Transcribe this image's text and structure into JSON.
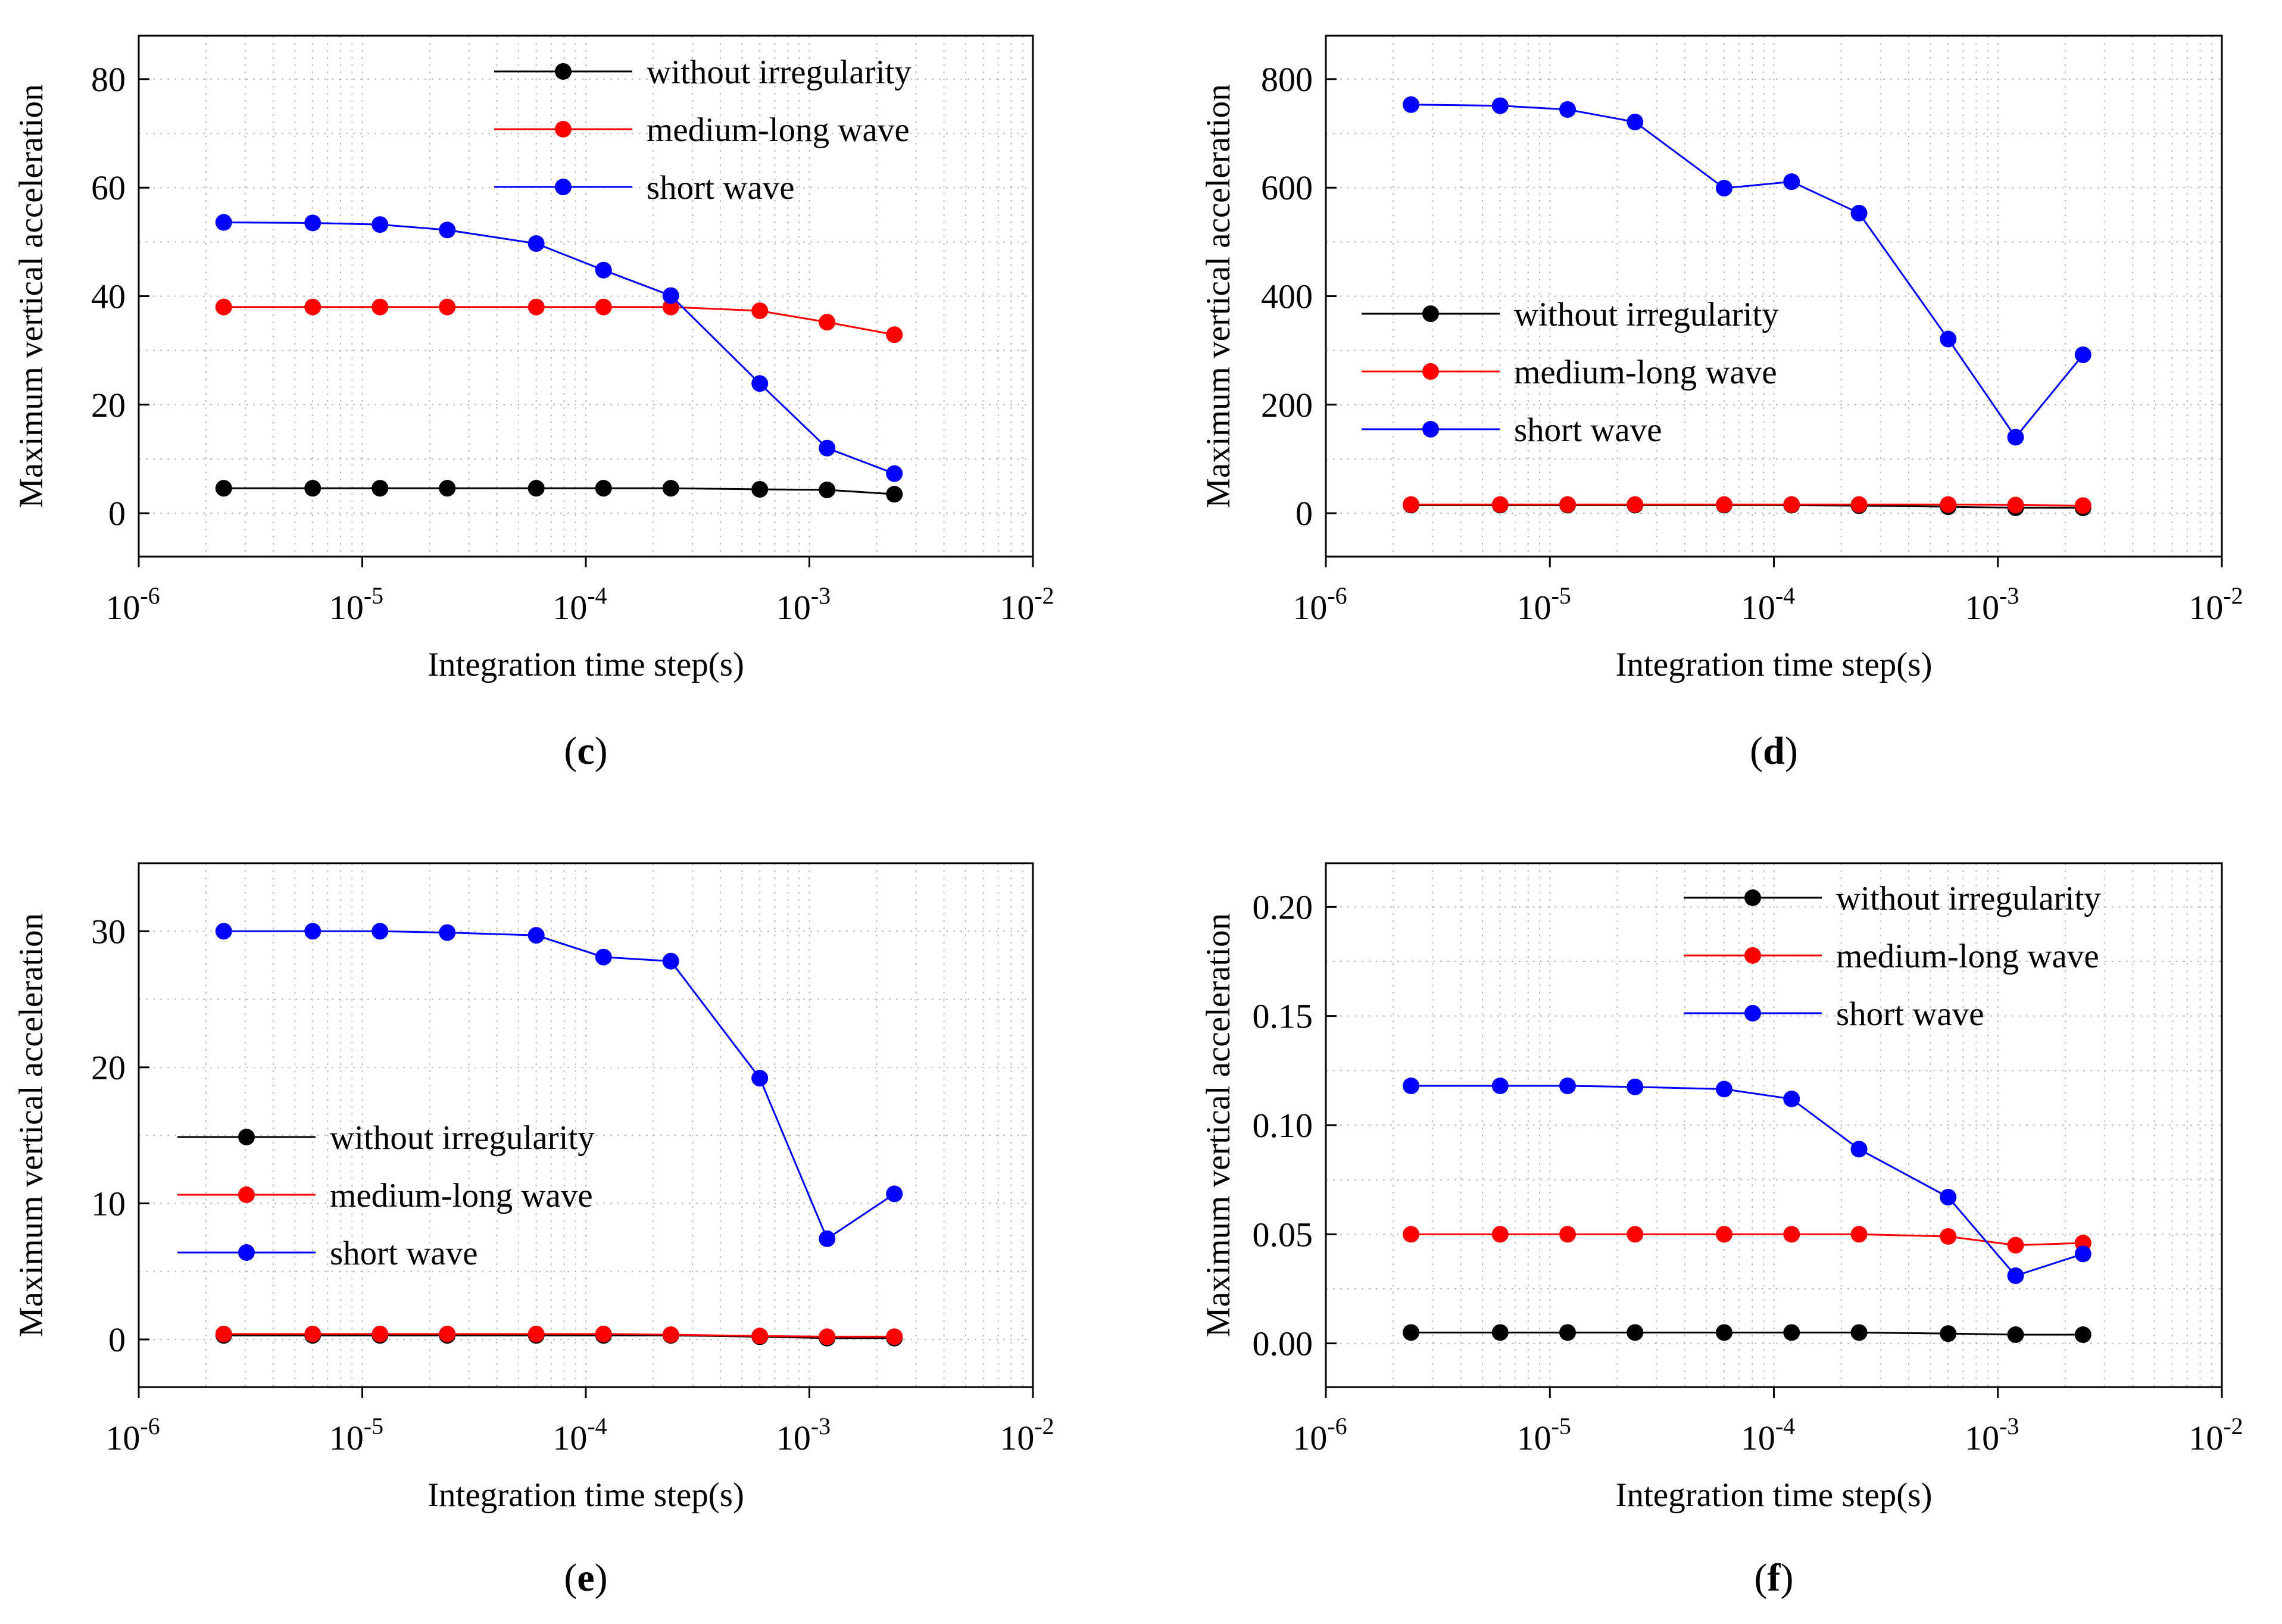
{
  "figure": {
    "x_axis_label": "Integration time step(s)",
    "y_axis_label": "Maximum vertical acceleration",
    "x_tick_labels": [
      {
        "base": "10",
        "exp": "-6"
      },
      {
        "base": "10",
        "exp": "-5"
      },
      {
        "base": "10",
        "exp": "-4"
      },
      {
        "base": "10",
        "exp": "-3"
      },
      {
        "base": "10",
        "exp": "-2"
      }
    ],
    "legend_entries": [
      "without irregularity",
      "medium-long wave",
      "short wave"
    ],
    "colors": {
      "without irregularity": "#000000",
      "medium-long wave": "#ff0000",
      "short wave": "#0000ff",
      "grid": "#bbbbbb"
    }
  },
  "chart_data": [
    {
      "id": "c",
      "label_letter": "c",
      "type": "line",
      "xscale": "log",
      "xlim": [
        1e-06,
        0.01
      ],
      "ylim": [
        -8,
        88
      ],
      "yticks": [
        0,
        20,
        40,
        60,
        80
      ],
      "ytick_labels": [
        "0",
        "20",
        "40",
        "60",
        "80"
      ],
      "x": [
        2.4e-06,
        6e-06,
        1.2e-05,
        2.4e-05,
        6e-05,
        0.00012,
        0.00024,
        0.0006,
        0.0012,
        0.0024
      ],
      "legend_position": "top-right",
      "series": [
        {
          "name": "without irregularity",
          "values": [
            4.6,
            4.6,
            4.6,
            4.6,
            4.6,
            4.6,
            4.6,
            4.4,
            4.3,
            3.5
          ]
        },
        {
          "name": "medium-long wave",
          "values": [
            38,
            38,
            38,
            38,
            38,
            38,
            38,
            37.3,
            35.2,
            32.9
          ]
        },
        {
          "name": "short wave",
          "values": [
            53.6,
            53.5,
            53.2,
            52.2,
            49.7,
            44.8,
            40.1,
            23.9,
            12,
            7.3
          ]
        }
      ]
    },
    {
      "id": "d",
      "label_letter": "d",
      "type": "line",
      "xscale": "log",
      "xlim": [
        1e-06,
        0.01
      ],
      "ylim": [
        -80,
        880
      ],
      "yticks": [
        0,
        200,
        400,
        600,
        800
      ],
      "ytick_labels": [
        "0",
        "200",
        "400",
        "600",
        "800"
      ],
      "x": [
        2.4e-06,
        6e-06,
        1.2e-05,
        2.4e-05,
        6e-05,
        0.00012,
        0.00024,
        0.0006,
        0.0012,
        0.0024
      ],
      "legend_position": "center-left",
      "series": [
        {
          "name": "without irregularity",
          "values": [
            15,
            15,
            15,
            15,
            15,
            15,
            14,
            12,
            10,
            10
          ]
        },
        {
          "name": "medium-long wave",
          "values": [
            16,
            16,
            16,
            16,
            16,
            16,
            16,
            16,
            15,
            14
          ]
        },
        {
          "name": "short wave",
          "values": [
            753,
            751,
            744,
            721,
            599,
            611,
            553,
            321,
            140,
            292
          ]
        }
      ]
    },
    {
      "id": "e",
      "label_letter": "e",
      "type": "line",
      "xscale": "log",
      "xlim": [
        1e-06,
        0.01
      ],
      "ylim": [
        -3.5,
        35
      ],
      "yticks": [
        0,
        10,
        20,
        30
      ],
      "ytick_labels": [
        "0",
        "10",
        "20",
        "30"
      ],
      "x": [
        2.4e-06,
        6e-06,
        1.2e-05,
        2.4e-05,
        6e-05,
        0.00012,
        0.00024,
        0.0006,
        0.0012,
        0.0024
      ],
      "legend_position": "center-left",
      "series": [
        {
          "name": "without irregularity",
          "values": [
            0.3,
            0.3,
            0.3,
            0.3,
            0.3,
            0.3,
            0.3,
            0.2,
            0.1,
            0.1
          ]
        },
        {
          "name": "medium-long wave",
          "values": [
            0.4,
            0.4,
            0.4,
            0.4,
            0.4,
            0.4,
            0.35,
            0.25,
            0.2,
            0.2
          ]
        },
        {
          "name": "short wave",
          "values": [
            30,
            30,
            30,
            29.9,
            29.7,
            28.1,
            27.8,
            19.2,
            7.4,
            10.7
          ]
        }
      ]
    },
    {
      "id": "f",
      "label_letter": "f",
      "type": "line",
      "xscale": "log",
      "xlim": [
        1e-06,
        0.01
      ],
      "ylim": [
        -0.02,
        0.22
      ],
      "yticks": [
        0,
        0.05,
        0.1,
        0.15,
        0.2
      ],
      "ytick_labels": [
        "0.00",
        "0.05",
        "0.10",
        "0.15",
        "0.20"
      ],
      "x": [
        2.4e-06,
        6e-06,
        1.2e-05,
        2.4e-05,
        6e-05,
        0.00012,
        0.00024,
        0.0006,
        0.0012,
        0.0024
      ],
      "legend_position": "top-right",
      "series": [
        {
          "name": "without irregularity",
          "values": [
            0.005,
            0.005,
            0.005,
            0.005,
            0.005,
            0.005,
            0.005,
            0.0045,
            0.004,
            0.004
          ]
        },
        {
          "name": "medium-long wave",
          "values": [
            0.05,
            0.05,
            0.05,
            0.05,
            0.05,
            0.05,
            0.05,
            0.049,
            0.045,
            0.046
          ]
        },
        {
          "name": "short wave",
          "values": [
            0.118,
            0.118,
            0.118,
            0.1175,
            0.1165,
            0.112,
            0.089,
            0.067,
            0.031,
            0.041
          ]
        }
      ]
    }
  ]
}
